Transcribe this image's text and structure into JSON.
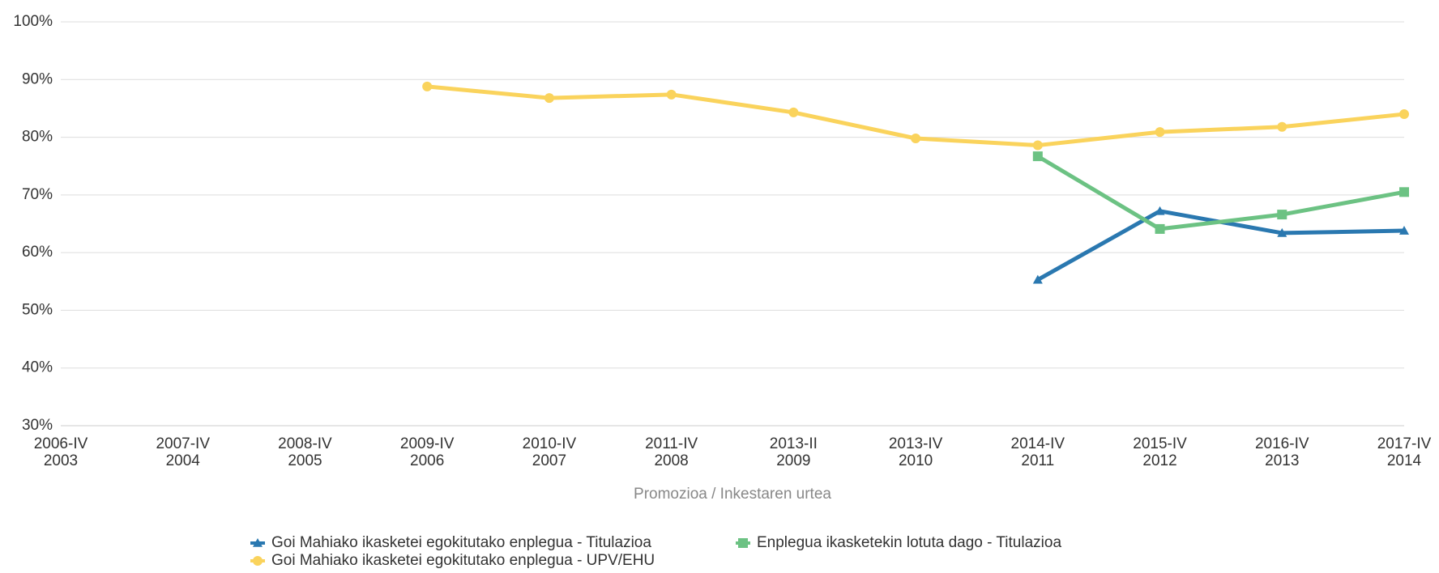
{
  "chart_data": {
    "type": "line",
    "x_label": "Promozioa / Inkestaren urtea",
    "categories": [
      [
        "2006-IV",
        "2003"
      ],
      [
        "2007-IV",
        "2004"
      ],
      [
        "2008-IV",
        "2005"
      ],
      [
        "2009-IV",
        "2006"
      ],
      [
        "2010-IV",
        "2007"
      ],
      [
        "2011-IV",
        "2008"
      ],
      [
        "2013-II",
        "2009"
      ],
      [
        "2013-IV",
        "2010"
      ],
      [
        "2014-IV",
        "2011"
      ],
      [
        "2015-IV",
        "2012"
      ],
      [
        "2016-IV",
        "2013"
      ],
      [
        "2017-IV",
        "2014"
      ]
    ],
    "series": [
      {
        "name": "Goi Mahiako ikasketei egokitutako enplegua - Titulazioa",
        "color": "#2a78b0",
        "marker": "triangle",
        "values": [
          null,
          null,
          null,
          null,
          null,
          null,
          null,
          null,
          55.3,
          67.2,
          63.4,
          63.8
        ]
      },
      {
        "name": "Enplegua ikasketekin lotuta dago - Titulazioa",
        "color": "#6cc283",
        "marker": "square",
        "values": [
          null,
          null,
          null,
          null,
          null,
          null,
          null,
          null,
          76.7,
          64.1,
          66.6,
          70.5
        ]
      },
      {
        "name": "Goi Mahiako ikasketei egokitutako enplegua - UPV/EHU",
        "color": "#fad35c",
        "marker": "circle",
        "values": [
          null,
          null,
          null,
          88.8,
          86.8,
          87.4,
          84.3,
          79.8,
          78.6,
          80.9,
          81.8,
          84.0
        ]
      }
    ],
    "ylim": [
      30,
      100
    ],
    "yticks": [
      {
        "value": 30,
        "label": "30%"
      },
      {
        "value": 40,
        "label": "40%"
      },
      {
        "value": 50,
        "label": "50%"
      },
      {
        "value": 60,
        "label": "60%"
      },
      {
        "value": 70,
        "label": "70%"
      },
      {
        "value": 80,
        "label": "80%"
      },
      {
        "value": 90,
        "label": "90%"
      },
      {
        "value": 100,
        "label": "100%"
      }
    ],
    "grid": true
  }
}
